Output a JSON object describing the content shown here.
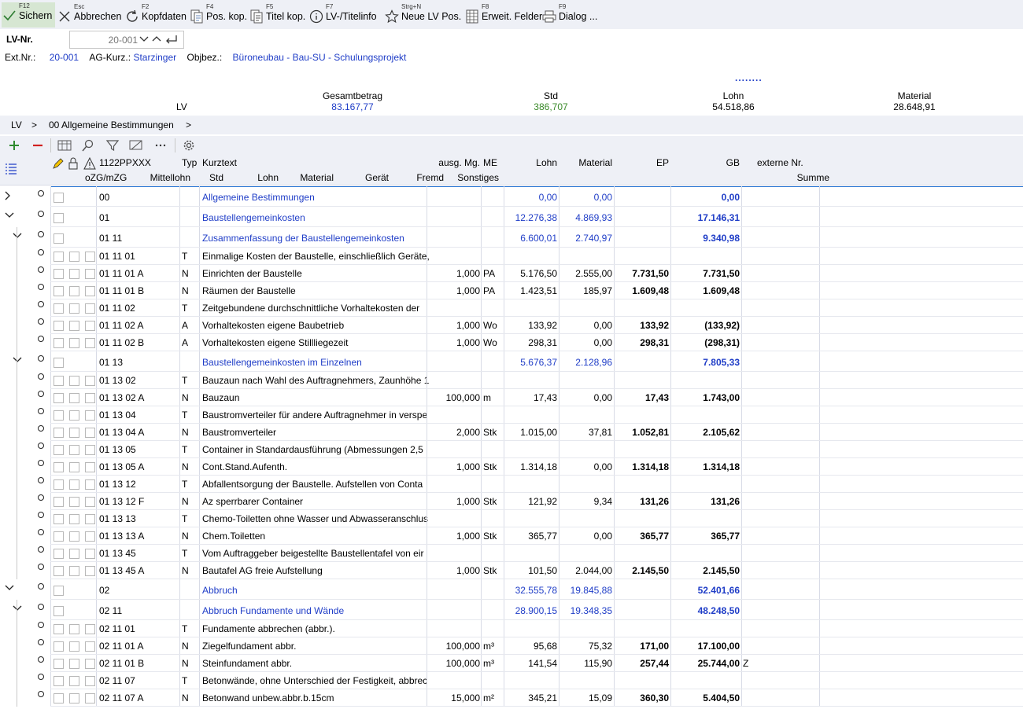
{
  "toolbar": {
    "save": {
      "key": "F12",
      "label": "Sichern"
    },
    "cancel": {
      "key": "Esc",
      "label": "Abbrechen"
    },
    "header": {
      "key": "F2",
      "label": "Kopfdaten"
    },
    "poscopy": {
      "key": "F4",
      "label": "Pos. kop."
    },
    "titlecopy": {
      "key": "F5",
      "label": "Titel kop."
    },
    "titleinfo": {
      "key": "F7",
      "label": "LV-/Titelinfo"
    },
    "newpos": {
      "key": "Strg+N",
      "label": "Neue LV Pos."
    },
    "extfields": {
      "key": "F8",
      "label": "Erweit. Felder"
    },
    "dialog": {
      "key": "F9",
      "label": "Dialog ..."
    }
  },
  "header": {
    "lvnr_label": "LV-Nr.",
    "lvnr_value": "20-001",
    "extnr_label": "Ext.Nr.:",
    "extnr_value": "20-001",
    "ag_label": "AG-Kurz.:",
    "ag_value": "Starzinger",
    "objbez_label": "Objbez.:",
    "objbez_value": "Büroneubau - Bau-SU - Schulungsprojekt"
  },
  "totals": {
    "dots": "........",
    "row_label": "LV",
    "gesamtbetrag_label": "Gesamtbetrag",
    "gesamtbetrag": "83.167,77",
    "std_label": "Std",
    "std": "386,707",
    "lohn_label": "Lohn",
    "lohn": "54.518,86",
    "material_label": "Material",
    "material": "28.648,91"
  },
  "breadcrumb": {
    "root": "LV",
    "sep": ">",
    "item": "00 Allgemeine Bestimmungen"
  },
  "columns": {
    "oz": "1122PPXXX",
    "typ": "Typ",
    "kurztext": "Kurztext",
    "ausg": "ausg. Mg.",
    "me": "ME",
    "lohn": "Lohn",
    "material": "Material",
    "ep": "EP",
    "gb": "GB",
    "extnr": "externe Nr.",
    "ozg": "oZG/mZG",
    "mittellohn": "Mittellohn",
    "std": "Std",
    "lohn2": "Lohn",
    "material2": "Material",
    "geraet": "Gerät",
    "fremd": "Fremd",
    "sonstiges": "Sonstiges",
    "summe": "Summe"
  },
  "rows": [
    {
      "lvl": 0,
      "exp": ">",
      "cb": 1,
      "oz": "00",
      "typ": "",
      "text": "Allgemeine Bestimmungen",
      "mg": "",
      "me": "",
      "lohn": "0,00",
      "mat": "0,00",
      "ep": "",
      "gb": "0,00",
      "ext": "",
      "blue": true,
      "h": 26
    },
    {
      "lvl": 0,
      "exp": "v",
      "cb": 1,
      "oz": "01",
      "typ": "",
      "text": "Baustellengemeinkosten",
      "mg": "",
      "me": "",
      "lohn": "12.276,38",
      "mat": "4.869,93",
      "ep": "",
      "gb": "17.146,31",
      "ext": "",
      "blue": true,
      "h": 26
    },
    {
      "lvl": 1,
      "exp": "v",
      "cb": 1,
      "oz": "01 11",
      "typ": "",
      "text": "Zusammenfassung der Baustellengemeinkosten",
      "mg": "",
      "me": "",
      "lohn": "6.600,01",
      "mat": "2.740,97",
      "ep": "",
      "gb": "9.340,98",
      "ext": "",
      "blue": true,
      "h": 26
    },
    {
      "lvl": 2,
      "exp": "",
      "cb": 3,
      "oz": "01 11 01",
      "typ": "T",
      "text": "Einmalige Kosten der Baustelle, einschließlich Geräte,",
      "mg": "",
      "me": "",
      "lohn": "",
      "mat": "",
      "ep": "",
      "gb": "",
      "ext": "",
      "blue": false,
      "h": 22
    },
    {
      "lvl": 2,
      "exp": "",
      "cb": 3,
      "oz": "01 11 01 A",
      "typ": "N",
      "text": "Einrichten der Baustelle",
      "mg": "1,000",
      "me": "PA",
      "lohn": "5.176,50",
      "mat": "2.555,00",
      "ep": "7.731,50",
      "gb": "7.731,50",
      "ext": "",
      "blue": false,
      "h": 22
    },
    {
      "lvl": 2,
      "exp": "",
      "cb": 3,
      "oz": "01 11 01 B",
      "typ": "N",
      "text": "Räumen der Baustelle",
      "mg": "1,000",
      "me": "PA",
      "lohn": "1.423,51",
      "mat": "185,97",
      "ep": "1.609,48",
      "gb": "1.609,48",
      "ext": "",
      "blue": false,
      "h": 22
    },
    {
      "lvl": 2,
      "exp": "",
      "cb": 3,
      "oz": "01 11 02",
      "typ": "T",
      "text": "Zeitgebundene durchschnittliche Vorhaltekosten der",
      "mg": "",
      "me": "",
      "lohn": "",
      "mat": "",
      "ep": "",
      "gb": "",
      "ext": "",
      "blue": false,
      "h": 22
    },
    {
      "lvl": 2,
      "exp": "",
      "cb": 3,
      "oz": "01 11 02 A",
      "typ": "A",
      "text": "Vorhaltekosten eigene Baubetrieb",
      "mg": "1,000",
      "me": "Wo",
      "lohn": "133,92",
      "mat": "0,00",
      "ep": "133,92",
      "gb": "(133,92)",
      "ext": "",
      "blue": false,
      "h": 22
    },
    {
      "lvl": 2,
      "exp": "",
      "cb": 3,
      "oz": "01 11 02 B",
      "typ": "A",
      "text": "Vorhaltekosten eigene Stillliegezeit",
      "mg": "1,000",
      "me": "Wo",
      "lohn": "298,31",
      "mat": "0,00",
      "ep": "298,31",
      "gb": "(298,31)",
      "ext": "",
      "blue": false,
      "h": 22
    },
    {
      "lvl": 1,
      "exp": "v",
      "cb": 1,
      "oz": "01 13",
      "typ": "",
      "text": "Baustellengemeinkosten im Einzelnen",
      "mg": "",
      "me": "",
      "lohn": "5.676,37",
      "mat": "2.128,96",
      "ep": "",
      "gb": "7.805,33",
      "ext": "",
      "blue": true,
      "h": 26
    },
    {
      "lvl": 2,
      "exp": "",
      "cb": 3,
      "oz": "01 13 02",
      "typ": "T",
      "text": "Bauzaun nach Wahl des Auftragnehmers, Zaunhöhe 1",
      "mg": "",
      "me": "",
      "lohn": "",
      "mat": "",
      "ep": "",
      "gb": "",
      "ext": "",
      "blue": false,
      "h": 22
    },
    {
      "lvl": 2,
      "exp": "",
      "cb": 3,
      "oz": "01 13 02 A",
      "typ": "N",
      "text": "Bauzaun",
      "mg": "100,000",
      "me": "m",
      "lohn": "17,43",
      "mat": "0,00",
      "ep": "17,43",
      "gb": "1.743,00",
      "ext": "",
      "blue": false,
      "h": 22
    },
    {
      "lvl": 2,
      "exp": "",
      "cb": 3,
      "oz": "01 13 04",
      "typ": "T",
      "text": "Baustromverteiler für andere Auftragnehmer in verspe",
      "mg": "",
      "me": "",
      "lohn": "",
      "mat": "",
      "ep": "",
      "gb": "",
      "ext": "",
      "blue": false,
      "h": 22
    },
    {
      "lvl": 2,
      "exp": "",
      "cb": 3,
      "oz": "01 13 04 A",
      "typ": "N",
      "text": "Baustromverteiler",
      "mg": "2,000",
      "me": "Stk",
      "lohn": "1.015,00",
      "mat": "37,81",
      "ep": "1.052,81",
      "gb": "2.105,62",
      "ext": "",
      "blue": false,
      "h": 22
    },
    {
      "lvl": 2,
      "exp": "",
      "cb": 3,
      "oz": "01 13 05",
      "typ": "T",
      "text": "Container in Standardausführung (Abmessungen 2,5",
      "mg": "",
      "me": "",
      "lohn": "",
      "mat": "",
      "ep": "",
      "gb": "",
      "ext": "",
      "blue": false,
      "h": 22
    },
    {
      "lvl": 2,
      "exp": "",
      "cb": 3,
      "oz": "01 13 05 A",
      "typ": "N",
      "text": "Cont.Stand.Aufenth.",
      "mg": "1,000",
      "me": "Stk",
      "lohn": "1.314,18",
      "mat": "0,00",
      "ep": "1.314,18",
      "gb": "1.314,18",
      "ext": "",
      "blue": false,
      "h": 22
    },
    {
      "lvl": 2,
      "exp": "",
      "cb": 3,
      "oz": "01 13 12",
      "typ": "T",
      "text": "Abfallentsorgung der Baustelle. Aufstellen von Conta",
      "mg": "",
      "me": "",
      "lohn": "",
      "mat": "",
      "ep": "",
      "gb": "",
      "ext": "",
      "blue": false,
      "h": 22
    },
    {
      "lvl": 2,
      "exp": "",
      "cb": 3,
      "oz": "01 13 12 F",
      "typ": "N",
      "text": "Az sperrbarer Container",
      "mg": "1,000",
      "me": "Stk",
      "lohn": "121,92",
      "mat": "9,34",
      "ep": "131,26",
      "gb": "131,26",
      "ext": "",
      "blue": false,
      "h": 22
    },
    {
      "lvl": 2,
      "exp": "",
      "cb": 3,
      "oz": "01 13 13",
      "typ": "T",
      "text": "Chemo-Toiletten ohne Wasser und Abwasseranschlus",
      "mg": "",
      "me": "",
      "lohn": "",
      "mat": "",
      "ep": "",
      "gb": "",
      "ext": "",
      "blue": false,
      "h": 22
    },
    {
      "lvl": 2,
      "exp": "",
      "cb": 3,
      "oz": "01 13 13 A",
      "typ": "N",
      "text": "Chem.Toiletten",
      "mg": "1,000",
      "me": "Stk",
      "lohn": "365,77",
      "mat": "0,00",
      "ep": "365,77",
      "gb": "365,77",
      "ext": "",
      "blue": false,
      "h": 22
    },
    {
      "lvl": 2,
      "exp": "",
      "cb": 3,
      "oz": "01 13 45",
      "typ": "T",
      "text": "Vom Auftraggeber beigestellte Baustellentafel von eir",
      "mg": "",
      "me": "",
      "lohn": "",
      "mat": "",
      "ep": "",
      "gb": "",
      "ext": "",
      "blue": false,
      "h": 22
    },
    {
      "lvl": 2,
      "exp": "",
      "cb": 3,
      "oz": "01 13 45 A",
      "typ": "N",
      "text": "Bautafel AG freie Aufstellung",
      "mg": "1,000",
      "me": "Stk",
      "lohn": "101,50",
      "mat": "2.044,00",
      "ep": "2.145,50",
      "gb": "2.145,50",
      "ext": "",
      "blue": false,
      "h": 22
    },
    {
      "lvl": 0,
      "exp": "v",
      "cb": 1,
      "oz": "02",
      "typ": "",
      "text": "Abbruch",
      "mg": "",
      "me": "",
      "lohn": "32.555,78",
      "mat": "19.845,88",
      "ep": "",
      "gb": "52.401,66",
      "ext": "",
      "blue": true,
      "h": 26
    },
    {
      "lvl": 1,
      "exp": "v",
      "cb": 1,
      "oz": "02 11",
      "typ": "",
      "text": "Abbruch Fundamente und Wände",
      "mg": "",
      "me": "",
      "lohn": "28.900,15",
      "mat": "19.348,35",
      "ep": "",
      "gb": "48.248,50",
      "ext": "",
      "blue": true,
      "h": 26
    },
    {
      "lvl": 2,
      "exp": "",
      "cb": 3,
      "oz": "02 11 01",
      "typ": "T",
      "text": "Fundamente abbrechen (abbr.).",
      "mg": "",
      "me": "",
      "lohn": "",
      "mat": "",
      "ep": "",
      "gb": "",
      "ext": "",
      "blue": false,
      "h": 22
    },
    {
      "lvl": 2,
      "exp": "",
      "cb": 3,
      "oz": "02 11 01 A",
      "typ": "N",
      "text": "Ziegelfundament abbr.",
      "mg": "100,000",
      "me": "m³",
      "lohn": "95,68",
      "mat": "75,32",
      "ep": "171,00",
      "gb": "17.100,00",
      "ext": "",
      "blue": false,
      "h": 22
    },
    {
      "lvl": 2,
      "exp": "",
      "cb": 3,
      "oz": "02 11 01 B",
      "typ": "N",
      "text": "Steinfundament abbr.",
      "mg": "100,000",
      "me": "m³",
      "lohn": "141,54",
      "mat": "115,90",
      "ep": "257,44",
      "gb": "25.744,00",
      "ext": "Z",
      "blue": false,
      "h": 22
    },
    {
      "lvl": 2,
      "exp": "",
      "cb": 3,
      "oz": "02 11 07",
      "typ": "T",
      "text": "Betonwände, ohne Unterschied der Festigkeit, abbrec",
      "mg": "",
      "me": "",
      "lohn": "",
      "mat": "",
      "ep": "",
      "gb": "",
      "ext": "",
      "blue": false,
      "h": 22
    },
    {
      "lvl": 2,
      "exp": "",
      "cb": 3,
      "oz": "02 11 07 A",
      "typ": "N",
      "text": "Betonwand unbew.abbr.b.15cm",
      "mg": "15,000",
      "me": "m²",
      "lohn": "345,21",
      "mat": "15,09",
      "ep": "360,30",
      "gb": "5.404,50",
      "ext": "",
      "blue": false,
      "h": 22
    }
  ]
}
